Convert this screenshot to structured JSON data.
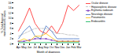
{
  "chart_data": {
    "type": "line",
    "categories": [
      "Apr",
      "May",
      "Jun",
      "Jul",
      "Aug",
      "Sep",
      "Oct",
      "Nov",
      "Dec",
      "Jan",
      "Feb",
      "Mar"
    ],
    "series": [
      {
        "name": "Ocular disease",
        "color": "#ff2020",
        "line_style": "solid",
        "values": [
          5,
          9,
          14,
          8,
          5,
          4,
          7,
          4,
          8,
          15,
          13,
          15
        ]
      },
      {
        "name": "Hepatosplenic disease",
        "color": "#bbbbbb",
        "line_style": "dashed",
        "values": [
          3,
          4,
          5,
          6,
          6,
          6,
          5,
          4,
          4,
          3.5,
          3.5,
          3
        ]
      },
      {
        "name": "Erythema nodosum",
        "color": "#8040c0",
        "line_style": "solid",
        "marker": "square",
        "values": [
          1,
          1,
          1.5,
          2,
          2,
          2,
          1.5,
          1,
          1,
          1,
          1,
          1
        ]
      },
      {
        "name": "Neurologic disease",
        "color": "#4472c4",
        "line_style": "solid",
        "values": [
          2,
          5,
          7,
          3,
          2,
          7,
          5,
          2,
          2,
          2,
          2,
          2
        ]
      },
      {
        "name": "Pneumonitis",
        "color": "#ffc000",
        "line_style": "solid",
        "values": [
          1,
          2,
          1,
          3,
          3,
          4,
          2.5,
          1,
          1,
          1,
          1,
          1
        ]
      },
      {
        "name": "Endocarditis",
        "color": "#00b050",
        "line_style": "solid",
        "values": [
          0.5,
          0.5,
          0.5,
          0.5,
          0.5,
          0.5,
          0.5,
          0.5,
          0.5,
          0.5,
          0.5,
          0.5
        ]
      }
    ],
    "xlabel": "Month of diagnosis",
    "ylabel": "% Total Atypical\nmanifestations cases",
    "ylim": [
      0,
      16
    ],
    "yticks": [
      0,
      2,
      4,
      6,
      8,
      10,
      12,
      14,
      16
    ],
    "grid": false,
    "legend": "upper right"
  }
}
